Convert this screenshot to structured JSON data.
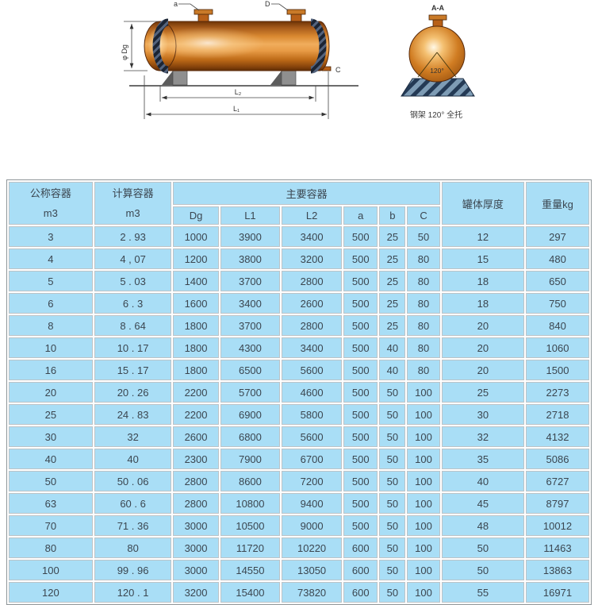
{
  "diagram": {
    "side_view": {
      "label_nozzle_a": "a",
      "label_nozzle_d": "D",
      "label_nozzle_c": "C",
      "label_diameter": "φ Dg",
      "label_l2": "L₂",
      "label_l1": "L₁"
    },
    "section_view": {
      "title": "A-A",
      "angle_label": "120°",
      "caption": "钢架 120° 全托"
    },
    "colors": {
      "copper_dark": "#6f3406",
      "copper_mid": "#d98830",
      "copper_light": "#f3b express",
      "saddle_gray": "#8f8f8f",
      "saddle_steel_blue": "#7e9cb5",
      "weld_band_dark": "#1b2433"
    }
  },
  "table": {
    "cell_color": "#a9def6",
    "header": {
      "col_nominal": {
        "line1": "公称容器",
        "line2": "m3"
      },
      "col_calculated": {
        "line1": "计算容器",
        "line2": "m3"
      },
      "group_main": "主要容器",
      "sub_columns": [
        "Dg",
        "L1",
        "L2",
        "a",
        "b",
        "C"
      ],
      "col_thickness": "罐体厚度",
      "col_weight": "重量kg"
    },
    "rows": [
      [
        "3",
        "2 . 93",
        "1000",
        "3900",
        "3400",
        "500",
        "25",
        "50",
        "12",
        "297"
      ],
      [
        "4",
        "4 , 07",
        "1200",
        "3800",
        "3200",
        "500",
        "25",
        "80",
        "15",
        "480"
      ],
      [
        "5",
        "5 . 03",
        "1400",
        "3700",
        "2800",
        "500",
        "25",
        "80",
        "18",
        "650"
      ],
      [
        "6",
        "6 . 3",
        "1600",
        "3400",
        "2600",
        "500",
        "25",
        "80",
        "18",
        "750"
      ],
      [
        "8",
        "8 . 64",
        "1800",
        "3700",
        "2800",
        "500",
        "25",
        "80",
        "20",
        "840"
      ],
      [
        "10",
        "10 . 17",
        "1800",
        "4300",
        "3400",
        "500",
        "40",
        "80",
        "20",
        "1060"
      ],
      [
        "16",
        "15 . 17",
        "1800",
        "6500",
        "5600",
        "500",
        "40",
        "80",
        "20",
        "1500"
      ],
      [
        "20",
        "20 . 26",
        "2200",
        "5700",
        "4600",
        "500",
        "50",
        "100",
        "25",
        "2273"
      ],
      [
        "25",
        "24 . 83",
        "2200",
        "6900",
        "5800",
        "500",
        "50",
        "100",
        "30",
        "2718"
      ],
      [
        "30",
        "32",
        "2600",
        "6800",
        "5600",
        "500",
        "50",
        "100",
        "32",
        "4132"
      ],
      [
        "40",
        "40",
        "2300",
        "7900",
        "6700",
        "500",
        "50",
        "100",
        "35",
        "5086"
      ],
      [
        "50",
        "50 . 06",
        "2800",
        "8600",
        "7200",
        "500",
        "50",
        "100",
        "40",
        "6727"
      ],
      [
        "63",
        "60 . 6",
        "2800",
        "10800",
        "9400",
        "500",
        "50",
        "100",
        "45",
        "8797"
      ],
      [
        "70",
        "71 . 36",
        "3000",
        "10500",
        "9000",
        "500",
        "50",
        "100",
        "48",
        "10012"
      ],
      [
        "80",
        "80",
        "3000",
        "11720",
        "10220",
        "600",
        "50",
        "100",
        "50",
        "11463"
      ],
      [
        "100",
        "99 . 96",
        "3000",
        "14550",
        "13050",
        "600",
        "50",
        "100",
        "50",
        "13863"
      ],
      [
        "120",
        "120 . 1",
        "3200",
        "15400",
        "73820",
        "600",
        "50",
        "100",
        "55",
        "16971"
      ]
    ]
  }
}
